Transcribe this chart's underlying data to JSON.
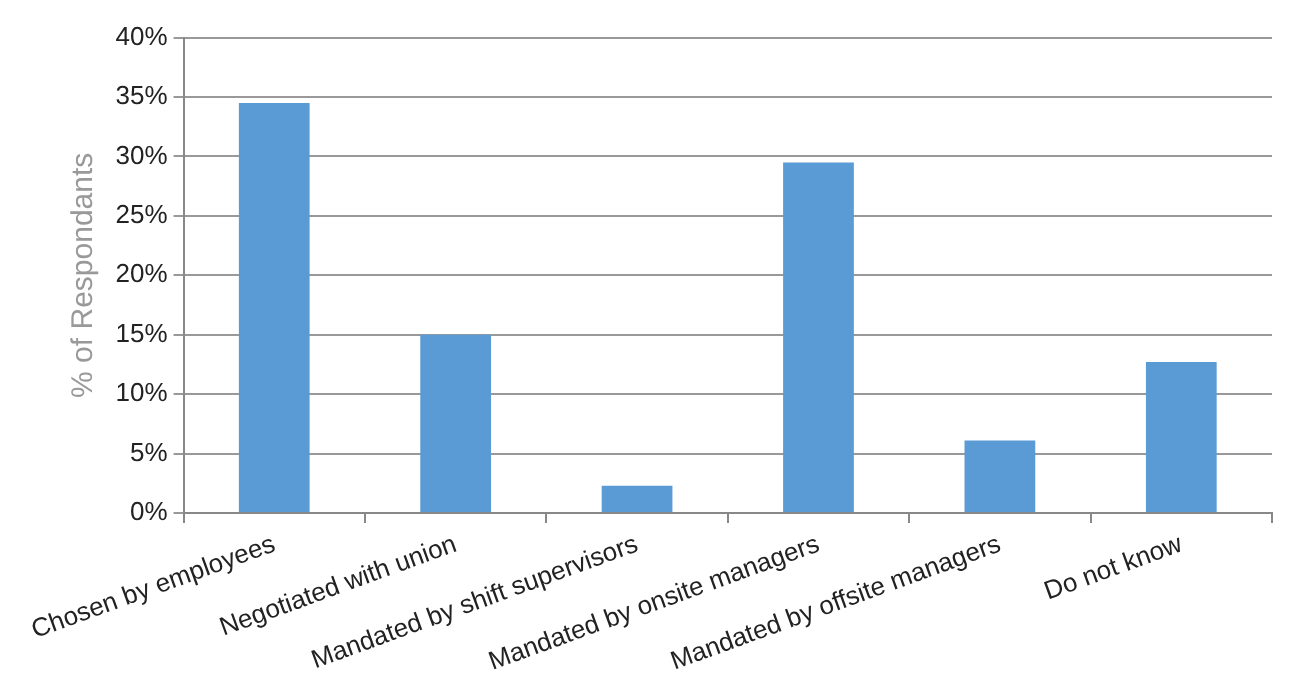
{
  "chart_data": {
    "type": "bar",
    "ylabel": "% of Respondants",
    "categories": [
      "Chosen by employees",
      "Negotiated with union",
      "Mandated by shift supervisors",
      "Mandated by onsite managers",
      "Mandated by offsite managers",
      "Do not know"
    ],
    "values": [
      34.5,
      15.0,
      2.3,
      29.5,
      6.1,
      12.7
    ],
    "color": "#5b9bd5",
    "ylim": [
      0,
      40
    ],
    "yticks": [
      {
        "value": 0,
        "label": "0%"
      },
      {
        "value": 5,
        "label": "5%"
      },
      {
        "value": 10,
        "label": "10%"
      },
      {
        "value": 15,
        "label": "15%"
      },
      {
        "value": 20,
        "label": "20%"
      },
      {
        "value": 25,
        "label": "25%"
      },
      {
        "value": 30,
        "label": "30%"
      },
      {
        "value": 35,
        "label": "35%"
      },
      {
        "value": 40,
        "label": "40%"
      }
    ],
    "grid": "y"
  }
}
